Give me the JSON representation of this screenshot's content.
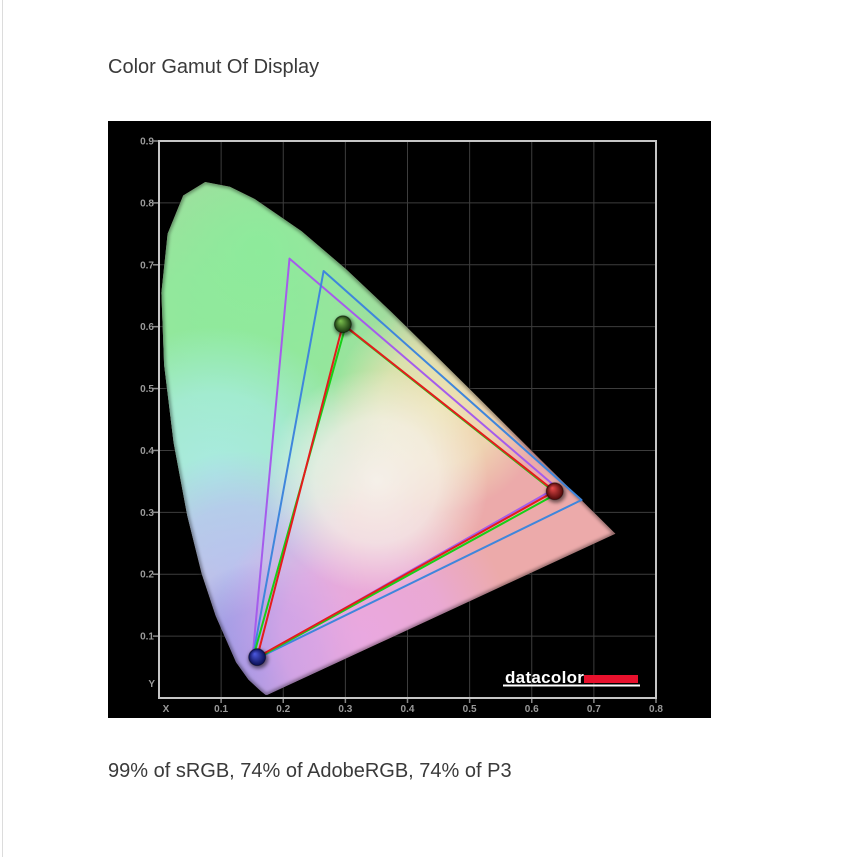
{
  "page": {
    "title": "Color Gamut Of Display",
    "caption": "99% of sRGB, 74% of AdobeRGB, 74% of P3"
  },
  "chart_data": {
    "type": "line",
    "subtype": "CIE 1931 xy chromaticity diagram with gamut triangles",
    "title": "Color Gamut Of Display",
    "xlabel": "X",
    "ylabel": "Y",
    "xlim": [
      0,
      0.8
    ],
    "ylim": [
      0,
      0.9
    ],
    "x_ticks": [
      0.1,
      0.2,
      0.3,
      0.4,
      0.5,
      0.6,
      0.7,
      0.8
    ],
    "y_ticks": [
      0.1,
      0.2,
      0.3,
      0.4,
      0.5,
      0.6,
      0.7,
      0.8,
      0.9
    ],
    "grid": true,
    "background": "#000000",
    "grid_color": "#3d3d3d",
    "frame_color": "#c6c6c6",
    "tick_label_color": "#9a9a9a",
    "series": [
      {
        "name": "AdobeRGB",
        "color": "#a55cec",
        "closed": true,
        "points": [
          [
            0.64,
            0.34
          ],
          [
            0.21,
            0.71
          ],
          [
            0.15,
            0.06
          ]
        ]
      },
      {
        "name": "P3",
        "color": "#3f86dc",
        "closed": true,
        "points": [
          [
            0.68,
            0.32
          ],
          [
            0.265,
            0.69
          ],
          [
            0.15,
            0.06
          ]
        ]
      },
      {
        "name": "sRGB",
        "color": "#17cf17",
        "closed": true,
        "points": [
          [
            0.64,
            0.33
          ],
          [
            0.3,
            0.6
          ],
          [
            0.15,
            0.06
          ]
        ]
      },
      {
        "name": "Display",
        "color": "#e51c1c",
        "closed": true,
        "points": [
          [
            0.637,
            0.334
          ],
          [
            0.296,
            0.604
          ],
          [
            0.158,
            0.066
          ]
        ]
      }
    ],
    "markers": [
      {
        "name": "green-primary",
        "x": 0.296,
        "y": 0.604,
        "light": "#7cc24f",
        "dark": "#16350e"
      },
      {
        "name": "red-primary",
        "x": 0.637,
        "y": 0.334,
        "light": "#ea4a4a",
        "dark": "#4d0808"
      },
      {
        "name": "blue-primary",
        "x": 0.158,
        "y": 0.066,
        "light": "#4d5ae2",
        "dark": "#090d52"
      }
    ],
    "spectral_locus": [
      [
        0.1741,
        0.005
      ],
      [
        0.1714,
        0.0051
      ],
      [
        0.1644,
        0.0109
      ],
      [
        0.144,
        0.0297
      ],
      [
        0.1241,
        0.0578
      ],
      [
        0.0913,
        0.1327
      ],
      [
        0.0687,
        0.2007
      ],
      [
        0.0454,
        0.295
      ],
      [
        0.0235,
        0.4127
      ],
      [
        0.0082,
        0.5384
      ],
      [
        0.0039,
        0.6548
      ],
      [
        0.0139,
        0.7502
      ],
      [
        0.0389,
        0.812
      ],
      [
        0.0743,
        0.8338
      ],
      [
        0.1142,
        0.8262
      ],
      [
        0.1547,
        0.8059
      ],
      [
        0.2296,
        0.7543
      ],
      [
        0.3016,
        0.6923
      ],
      [
        0.3731,
        0.6245
      ],
      [
        0.4441,
        0.5547
      ],
      [
        0.5125,
        0.4866
      ],
      [
        0.5752,
        0.4242
      ],
      [
        0.627,
        0.3725
      ],
      [
        0.6658,
        0.334
      ],
      [
        0.6915,
        0.3083
      ],
      [
        0.7079,
        0.292
      ],
      [
        0.726,
        0.274
      ],
      [
        0.7347,
        0.2653
      ]
    ],
    "locus_fill": {
      "base": "#ecaaaa",
      "splashes": [
        {
          "color": "#8deb9b",
          "cx": 0.16,
          "cy": 0.72,
          "r": 0.44,
          "op": 1
        },
        {
          "color": "#8deb9b",
          "cx": 0.1,
          "cy": 0.52,
          "r": 0.3,
          "op": 0.9
        },
        {
          "color": "#a9ece4",
          "cx": 0.09,
          "cy": 0.36,
          "r": 0.24,
          "op": 0.95
        },
        {
          "color": "#b9c0f2",
          "cx": 0.13,
          "cy": 0.2,
          "r": 0.2,
          "op": 0.9
        },
        {
          "color": "#8f92e8",
          "cx": 0.17,
          "cy": 0.05,
          "r": 0.17,
          "op": 0.95
        },
        {
          "color": "#e9a8e6",
          "cx": 0.33,
          "cy": 0.1,
          "r": 0.24,
          "op": 0.9
        },
        {
          "color": "#f0ebb4",
          "cx": 0.45,
          "cy": 0.47,
          "r": 0.17,
          "op": 0.85
        },
        {
          "color": "#f6f3ec",
          "cx": 0.35,
          "cy": 0.35,
          "r": 0.18,
          "op": 0.95
        }
      ]
    },
    "watermark": {
      "text": "datacolor",
      "text_color": "#ffffff",
      "accent_color": "#e8112d"
    }
  }
}
